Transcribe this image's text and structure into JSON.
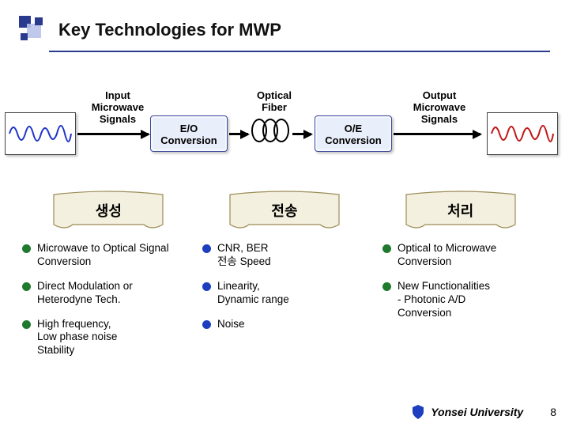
{
  "title": "Key Technologies for MWP",
  "colors": {
    "accent_blue": "#2a3b8f",
    "title_rule": "#2a3b8f",
    "logo_dark": "#2a3b8f",
    "logo_light": "#b9c3ea",
    "conv_box_bg": "#e9eefb",
    "wave_blue": "#1f35c8",
    "wave_red": "#c01515",
    "banner_fill": "#f4f0df",
    "banner_stroke": "#9a8b55",
    "bullet_green": "#1f7a2e",
    "bullet_blue": "#1d3fbf",
    "shield": "#1d3fbf"
  },
  "flow": {
    "input_label": "Input\nMicrowave\nSignals",
    "eo_label": "E/O\nConversion",
    "fiber_label": "Optical\nFiber",
    "oe_label": "O/E\nConversion",
    "output_label": "Output\nMicrowave\nSignals"
  },
  "banners": [
    "생성",
    "전송",
    "처리"
  ],
  "columns": [
    {
      "bullet_color": "#1f7a2e",
      "items": [
        "Microwave to Optical Signal Conversion",
        "Direct Modulation or Heterodyne Tech.",
        "High frequency,\nLow phase noise\nStability"
      ]
    },
    {
      "bullet_color": "#1d3fbf",
      "items": [
        "CNR, BER\n전송 Speed",
        "Linearity,\nDynamic range",
        "Noise"
      ]
    },
    {
      "bullet_color": "#1f7a2e",
      "items": [
        "Optical to Microwave Conversion",
        "New Functionalities\n- Photonic A/D\n  Conversion"
      ]
    }
  ],
  "footer": {
    "affiliation": "Yonsei University",
    "page": "8"
  }
}
